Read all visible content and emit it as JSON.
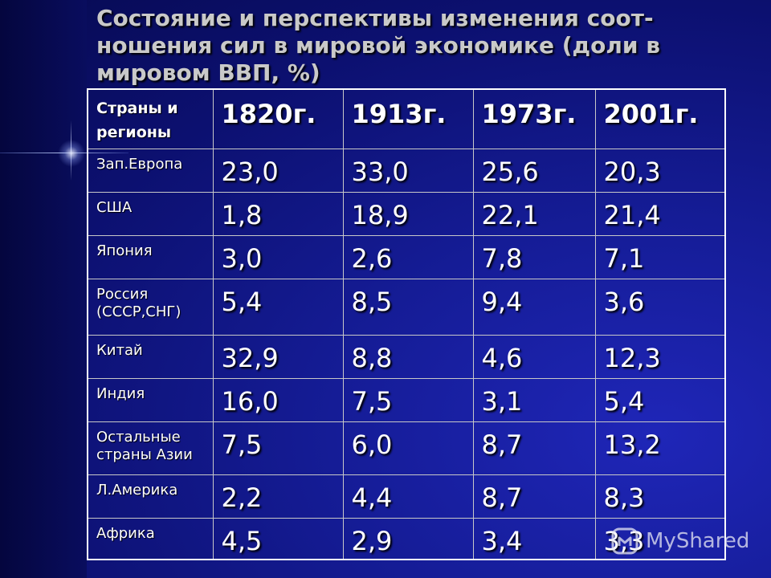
{
  "title": "Состояние и перспективы изменения соот-ношения сил в мировой экономике (доли в мировом ВВП, %)",
  "table": {
    "header_region": "Страны и регионы",
    "years": [
      "1820г.",
      "1913г.",
      "1973г.",
      "2001г."
    ],
    "rows": [
      {
        "region": "Зап.Европа",
        "values": [
          "23,0",
          "33,0",
          "25,6",
          "20,3"
        ]
      },
      {
        "region": "США",
        "values": [
          "1,8",
          "18,9",
          "22,1",
          "21,4"
        ]
      },
      {
        "region": "Япония",
        "values": [
          "3,0",
          "2,6",
          "7,8",
          "7,1"
        ]
      },
      {
        "region": "Россия (СССР,СНГ)",
        "values": [
          "5,4",
          "8,5",
          "9,4",
          "3,6"
        ]
      },
      {
        "region": "Китай",
        "values": [
          "32,9",
          "8,8",
          "4,6",
          "12,3"
        ]
      },
      {
        "region": "Индия",
        "values": [
          "16,0",
          "7,5",
          "3,1",
          "5,4"
        ]
      },
      {
        "region": "Остальные страны Азии",
        "values": [
          "7,5",
          "6,0",
          "8,7",
          "13,2"
        ]
      },
      {
        "region": "Л.Америка",
        "values": [
          "2,2",
          "4,4",
          "8,7",
          "8,3"
        ]
      },
      {
        "region": "Африка",
        "values": [
          "4,5",
          "2,9",
          "3,4",
          "3,3"
        ]
      }
    ]
  },
  "watermark": {
    "text": "MyShared",
    "icon": "myshared-logo-icon"
  }
}
